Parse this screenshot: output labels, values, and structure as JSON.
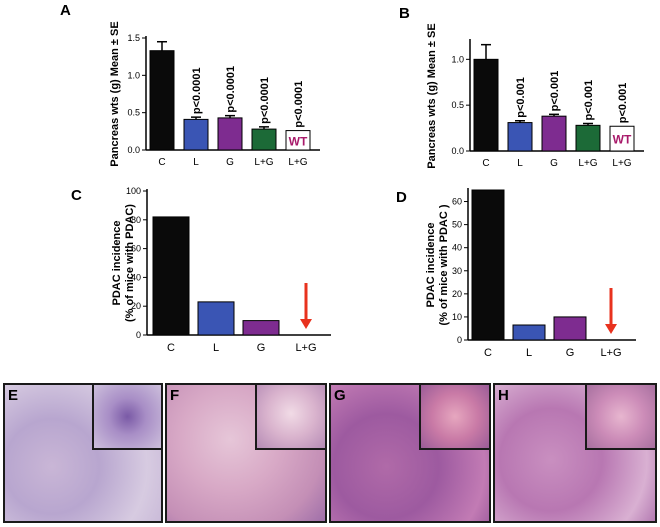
{
  "panels": {
    "A": "A",
    "B": "B",
    "C": "C",
    "D": "D",
    "E": "E",
    "F": "F",
    "G": "G",
    "H": "H"
  },
  "colors": {
    "C": "#0a0a0a",
    "L": "#3a55b4",
    "G": "#7e2c90",
    "LG": "#1c6a37",
    "WT": "#ffffff",
    "WT_text": "#a8196a",
    "arrow": "#e8321e"
  },
  "chart_data": [
    {
      "id": "A",
      "type": "bar",
      "ylabel": "Pancreas wts (g) Mean ± SE",
      "ylim": [
        0,
        1.5
      ],
      "yticks": [
        "0.0",
        "0.5",
        "1.0",
        "1.5"
      ],
      "ytick_values": [
        0,
        0.5,
        1.0,
        1.5
      ],
      "categories": [
        "C",
        "L",
        "G",
        "L+G",
        "L+G"
      ],
      "values": [
        1.33,
        0.41,
        0.43,
        0.28,
        0.26
      ],
      "errors": [
        0.12,
        0.03,
        0.03,
        0.03,
        0.0
      ],
      "annotations": [
        "",
        "p<0.0001",
        "p<0.0001",
        "p<0.0001",
        "p<0.0001"
      ],
      "bar_labels": [
        "",
        "",
        "",
        "",
        "WT"
      ],
      "legend_note": ""
    },
    {
      "id": "B",
      "type": "bar",
      "ylabel": "Pancreas wts (g) Mean ± SE",
      "ylim": [
        0,
        1.2
      ],
      "yticks": [
        "0.0",
        "0.5",
        "1.0"
      ],
      "ytick_values": [
        0,
        0.5,
        1.0
      ],
      "categories": [
        "C",
        "L",
        "G",
        "L+G",
        "L+G"
      ],
      "values": [
        1.0,
        0.31,
        0.38,
        0.28,
        0.27
      ],
      "errors": [
        0.16,
        0.02,
        0.02,
        0.02,
        0.0
      ],
      "annotations": [
        "",
        "p<0.001",
        "p<0.001",
        "p<0.001",
        "p<0.001"
      ],
      "bar_labels": [
        "",
        "",
        "",
        "",
        "WT"
      ]
    },
    {
      "id": "C",
      "type": "bar",
      "ylabel": "PDAC incidence\n(% of mice with PDAC)",
      "ylabel_lines": [
        "PDAC incidence",
        "(% of mice with PDAC)"
      ],
      "ylim": [
        0,
        100
      ],
      "yticks": [
        "0",
        "20",
        "40",
        "60",
        "80",
        "100"
      ],
      "ytick_values": [
        0,
        20,
        40,
        60,
        80,
        100
      ],
      "categories": [
        "C",
        "L",
        "G",
        "L+G"
      ],
      "values": [
        82,
        23,
        10,
        0
      ]
    },
    {
      "id": "D",
      "type": "bar",
      "ylabel": "PDAC incidence\n(% of mice with PDAC )",
      "ylabel_lines": [
        "PDAC incidence",
        "(% of mice with PDAC )"
      ],
      "ylim": [
        0,
        65
      ],
      "yticks": [
        "0",
        "10",
        "20",
        "30",
        "40",
        "50",
        "60"
      ],
      "ytick_values": [
        0,
        10,
        20,
        30,
        40,
        50,
        60
      ],
      "categories": [
        "C",
        "L",
        "G",
        "L+G"
      ],
      "values": [
        65,
        6.5,
        10,
        0
      ]
    }
  ]
}
